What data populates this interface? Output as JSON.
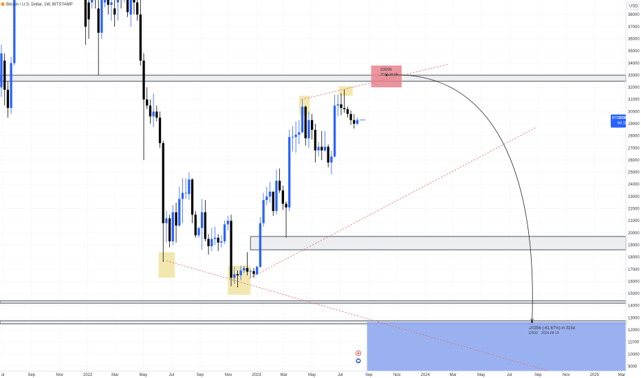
{
  "header": {
    "title": "Bitcoin / U.S. Dollar, 1W, BITSTAMP"
  },
  "price_axis": {
    "currency_label": "USD",
    "ticks": [
      "38000",
      "37000",
      "36000",
      "35000",
      "34000",
      "33000",
      "32000",
      "31000",
      "30000",
      "29000",
      "28000",
      "27000",
      "26000",
      "25000",
      "24000",
      "23000",
      "22000",
      "21000",
      "20000",
      "19000",
      "18000",
      "17000",
      "16000",
      "15000",
      "14000",
      "13000",
      "12000",
      "11000",
      "10000",
      "9000"
    ]
  },
  "time_axis": {
    "ticks": [
      {
        "label": "ul",
        "date": "2021-07-01"
      },
      {
        "label": "Sep",
        "date": "2021-09-01"
      },
      {
        "label": "Nov",
        "date": "2021-11-01"
      },
      {
        "label": "2022",
        "date": "2022-01-01"
      },
      {
        "label": "Mar",
        "date": "2022-03-01"
      },
      {
        "label": "May",
        "date": "2022-05-01"
      },
      {
        "label": "Jul",
        "date": "2022-07-01"
      },
      {
        "label": "Sep",
        "date": "2022-09-01"
      },
      {
        "label": "Nov",
        "date": "2022-11-01"
      },
      {
        "label": "2023",
        "date": "2023-01-01"
      },
      {
        "label": "Mar",
        "date": "2023-03-01"
      },
      {
        "label": "May",
        "date": "2023-05-01"
      },
      {
        "label": "Jul",
        "date": "2023-07-01"
      },
      {
        "label": "Sep",
        "date": "2023-09-01"
      },
      {
        "label": "Nov",
        "date": "2023-11-01"
      },
      {
        "label": "2024",
        "date": "2024-01-01"
      },
      {
        "label": "Mar",
        "date": "2024-03-01"
      },
      {
        "label": "May",
        "date": "2024-05-01"
      },
      {
        "label": "Jul",
        "date": "2024-07-01"
      },
      {
        "label": "Sep",
        "date": "2024-09-01"
      },
      {
        "label": "Nov",
        "date": "2024-11-01"
      },
      {
        "label": "2025",
        "date": "2025-01-01"
      },
      {
        "label": "Mar",
        "date": "2025-03-01"
      }
    ]
  },
  "current_price": {
    "symbol": "BTCUSD",
    "price": "29305",
    "countdown": "6d 11h"
  },
  "annotations": {
    "peak_price": "33006",
    "peak_date": "2023-10-09",
    "measure_line1": "-20356 (-61.67%) in 315d",
    "measure_line2": "12650",
    "measure_line3": "2024-08-19"
  },
  "colors": {
    "bull": "#2962ff",
    "bear": "#000000",
    "zone_border": "#7d8088",
    "zone_fill": "#eceef2",
    "pivot_highlight": "#f0e4a1",
    "target_red": "#e8828f",
    "target_blue": "#8fa9ef",
    "trendline": "#e07070",
    "badge": "#2962ff"
  },
  "chart_data": {
    "type": "candlestick",
    "timeframe": "1W",
    "x_range": [
      "2021-06-25",
      "2025-03-10"
    ],
    "y_range": [
      8600,
      39200
    ],
    "candles": [
      {
        "date": "2021-06-28",
        "o": 32000,
        "h": 35500,
        "l": 31200,
        "c": 34800
      },
      {
        "date": "2021-07-05",
        "o": 34200,
        "h": 34800,
        "l": 30500,
        "c": 31800
      },
      {
        "date": "2021-07-12",
        "o": 31800,
        "h": 32500,
        "l": 29500,
        "c": 30300
      },
      {
        "date": "2021-07-19",
        "o": 30300,
        "h": 34500,
        "l": 29800,
        "c": 34000
      },
      {
        "date": "2021-07-26",
        "o": 34000,
        "h": 40000,
        "l": 33800,
        "c": 39500
      },
      {
        "date": "2021-12-27",
        "o": 41000,
        "h": 41500,
        "l": 35500,
        "c": 37000
      },
      {
        "date": "2022-01-03",
        "o": 39000,
        "h": 40000,
        "l": 36000,
        "c": 37600
      },
      {
        "date": "2022-01-10",
        "o": 39000,
        "h": 41000,
        "l": 38500,
        "c": 40000
      },
      {
        "date": "2022-01-17",
        "o": 40000,
        "h": 41500,
        "l": 38500,
        "c": 39500
      },
      {
        "date": "2022-01-24",
        "o": 38500,
        "h": 41000,
        "l": 33000,
        "c": 36500
      },
      {
        "date": "2022-01-31",
        "o": 36500,
        "h": 40000,
        "l": 36000,
        "c": 39500
      },
      {
        "date": "2022-02-07",
        "o": 39000,
        "h": 42500,
        "l": 38600,
        "c": 40500
      },
      {
        "date": "2022-02-14",
        "o": 40500,
        "h": 41000,
        "l": 38000,
        "c": 38800
      },
      {
        "date": "2022-02-21",
        "o": 38800,
        "h": 40000,
        "l": 37500,
        "c": 39000
      },
      {
        "date": "2022-02-28",
        "o": 38500,
        "h": 40000,
        "l": 37000,
        "c": 38000
      },
      {
        "date": "2022-03-07",
        "o": 39000,
        "h": 41000,
        "l": 37500,
        "c": 40000
      },
      {
        "date": "2022-03-14",
        "o": 40500,
        "h": 41000,
        "l": 38500,
        "c": 39500
      },
      {
        "date": "2022-03-21",
        "o": 40000,
        "h": 42000,
        "l": 39000,
        "c": 41500
      },
      {
        "date": "2022-03-28",
        "o": 41500,
        "h": 42000,
        "l": 37800,
        "c": 38200
      },
      {
        "date": "2022-04-04",
        "o": 38000,
        "h": 40000,
        "l": 37000,
        "c": 39800
      },
      {
        "date": "2022-04-11",
        "o": 39800,
        "h": 41000,
        "l": 38000,
        "c": 39000
      },
      {
        "date": "2022-04-18",
        "o": 39000,
        "h": 40500,
        "l": 37500,
        "c": 38000
      },
      {
        "date": "2022-04-25",
        "o": 38000,
        "h": 39500,
        "l": 33800,
        "c": 34200
      },
      {
        "date": "2022-05-02",
        "o": 34200,
        "h": 34800,
        "l": 26000,
        "c": 31000
      },
      {
        "date": "2022-05-09",
        "o": 31000,
        "h": 32000,
        "l": 30200,
        "c": 30500
      },
      {
        "date": "2022-05-16",
        "o": 30500,
        "h": 31000,
        "l": 29000,
        "c": 29600
      },
      {
        "date": "2022-05-23",
        "o": 29600,
        "h": 31500,
        "l": 28700,
        "c": 30000
      },
      {
        "date": "2022-05-30",
        "o": 30000,
        "h": 30500,
        "l": 29200,
        "c": 29500
      },
      {
        "date": "2022-06-06",
        "o": 29500,
        "h": 30000,
        "l": 27000,
        "c": 27400
      },
      {
        "date": "2022-06-13",
        "o": 27400,
        "h": 27600,
        "l": 17600,
        "c": 20800
      },
      {
        "date": "2022-06-20",
        "o": 20800,
        "h": 21800,
        "l": 19200,
        "c": 21200
      },
      {
        "date": "2022-06-27",
        "o": 21200,
        "h": 21500,
        "l": 18800,
        "c": 19300
      },
      {
        "date": "2022-07-04",
        "o": 19300,
        "h": 22300,
        "l": 19000,
        "c": 21700
      },
      {
        "date": "2022-07-11",
        "o": 21700,
        "h": 22500,
        "l": 19200,
        "c": 20600
      },
      {
        "date": "2022-07-18",
        "o": 20600,
        "h": 23800,
        "l": 20500,
        "c": 22800
      },
      {
        "date": "2022-07-25",
        "o": 22800,
        "h": 24500,
        "l": 20800,
        "c": 23300
      },
      {
        "date": "2022-08-01",
        "o": 23300,
        "h": 24500,
        "l": 22800,
        "c": 23300
      },
      {
        "date": "2022-08-08",
        "o": 23200,
        "h": 25000,
        "l": 22700,
        "c": 24400
      },
      {
        "date": "2022-08-15",
        "o": 24400,
        "h": 24500,
        "l": 20800,
        "c": 21500
      },
      {
        "date": "2022-08-22",
        "o": 21500,
        "h": 21800,
        "l": 19600,
        "c": 19800
      },
      {
        "date": "2022-08-29",
        "o": 19800,
        "h": 20500,
        "l": 19600,
        "c": 20400
      },
      {
        "date": "2022-09-05",
        "o": 20400,
        "h": 22800,
        "l": 18600,
        "c": 21700
      },
      {
        "date": "2022-09-12",
        "o": 21700,
        "h": 22700,
        "l": 19300,
        "c": 19500
      },
      {
        "date": "2022-09-19",
        "o": 19500,
        "h": 19900,
        "l": 18200,
        "c": 18900
      },
      {
        "date": "2022-09-26",
        "o": 18900,
        "h": 20400,
        "l": 18500,
        "c": 19500
      },
      {
        "date": "2022-10-03",
        "o": 19500,
        "h": 20500,
        "l": 19000,
        "c": 19600
      },
      {
        "date": "2022-10-10",
        "o": 19600,
        "h": 19900,
        "l": 18500,
        "c": 19200
      },
      {
        "date": "2022-10-17",
        "o": 19200,
        "h": 19800,
        "l": 18800,
        "c": 19300
      },
      {
        "date": "2022-10-24",
        "o": 19300,
        "h": 21000,
        "l": 19100,
        "c": 20700
      },
      {
        "date": "2022-10-31",
        "o": 20700,
        "h": 21400,
        "l": 20200,
        "c": 21000
      },
      {
        "date": "2022-11-07",
        "o": 21000,
        "h": 21500,
        "l": 15600,
        "c": 16300
      },
      {
        "date": "2022-11-14",
        "o": 16300,
        "h": 17200,
        "l": 15800,
        "c": 16600
      },
      {
        "date": "2022-11-21",
        "o": 16600,
        "h": 16900,
        "l": 15500,
        "c": 16500
      },
      {
        "date": "2022-11-28",
        "o": 16500,
        "h": 17300,
        "l": 16100,
        "c": 16900
      },
      {
        "date": "2022-12-05",
        "o": 16900,
        "h": 17300,
        "l": 16700,
        "c": 17100
      },
      {
        "date": "2022-12-12",
        "o": 17100,
        "h": 18400,
        "l": 16500,
        "c": 16800
      },
      {
        "date": "2022-12-19",
        "o": 16800,
        "h": 17000,
        "l": 16300,
        "c": 16850
      },
      {
        "date": "2022-12-26",
        "o": 16850,
        "h": 17100,
        "l": 16300,
        "c": 16600
      },
      {
        "date": "2023-01-02",
        "o": 16600,
        "h": 17300,
        "l": 16500,
        "c": 17200
      },
      {
        "date": "2023-01-09",
        "o": 17200,
        "h": 21300,
        "l": 17100,
        "c": 20800
      },
      {
        "date": "2023-01-16",
        "o": 20800,
        "h": 23300,
        "l": 20500,
        "c": 22700
      },
      {
        "date": "2023-01-23",
        "o": 22700,
        "h": 23800,
        "l": 22300,
        "c": 23000
      },
      {
        "date": "2023-01-30",
        "o": 23000,
        "h": 24200,
        "l": 22500,
        "c": 23400
      },
      {
        "date": "2023-02-06",
        "o": 23400,
        "h": 23400,
        "l": 21400,
        "c": 21800
      },
      {
        "date": "2023-02-13",
        "o": 21800,
        "h": 25200,
        "l": 21500,
        "c": 24300
      },
      {
        "date": "2023-02-20",
        "o": 24300,
        "h": 25300,
        "l": 23300,
        "c": 23500
      },
      {
        "date": "2023-02-27",
        "o": 23500,
        "h": 23900,
        "l": 21900,
        "c": 22400
      },
      {
        "date": "2023-03-06",
        "o": 22400,
        "h": 22600,
        "l": 19600,
        "c": 22100
      },
      {
        "date": "2023-03-13",
        "o": 22100,
        "h": 28500,
        "l": 21800,
        "c": 27900
      },
      {
        "date": "2023-03-20",
        "o": 27900,
        "h": 28800,
        "l": 26700,
        "c": 27900
      },
      {
        "date": "2023-03-27",
        "o": 27900,
        "h": 29200,
        "l": 26600,
        "c": 28100
      },
      {
        "date": "2023-04-03",
        "o": 28100,
        "h": 29300,
        "l": 27300,
        "c": 28300
      },
      {
        "date": "2023-04-10",
        "o": 28300,
        "h": 31000,
        "l": 28200,
        "c": 30400
      },
      {
        "date": "2023-04-17",
        "o": 30400,
        "h": 30500,
        "l": 27200,
        "c": 27800
      },
      {
        "date": "2023-04-24",
        "o": 27800,
        "h": 30000,
        "l": 27000,
        "c": 29300
      },
      {
        "date": "2023-05-01",
        "o": 29300,
        "h": 29800,
        "l": 27700,
        "c": 28500
      },
      {
        "date": "2023-05-08",
        "o": 28500,
        "h": 29000,
        "l": 25800,
        "c": 26800
      },
      {
        "date": "2023-05-15",
        "o": 26800,
        "h": 27500,
        "l": 26300,
        "c": 27100
      },
      {
        "date": "2023-05-22",
        "o": 27100,
        "h": 28400,
        "l": 26000,
        "c": 26800
      },
      {
        "date": "2023-05-29",
        "o": 26800,
        "h": 28400,
        "l": 26700,
        "c": 27100
      },
      {
        "date": "2023-06-05",
        "o": 27100,
        "h": 27300,
        "l": 25400,
        "c": 25800
      },
      {
        "date": "2023-06-12",
        "o": 25800,
        "h": 26800,
        "l": 24800,
        "c": 26300
      },
      {
        "date": "2023-06-19",
        "o": 26300,
        "h": 31400,
        "l": 26200,
        "c": 30500
      },
      {
        "date": "2023-06-26",
        "o": 30500,
        "h": 31400,
        "l": 29600,
        "c": 30600
      },
      {
        "date": "2023-07-03",
        "o": 30600,
        "h": 31500,
        "l": 29700,
        "c": 30300
      },
      {
        "date": "2023-07-10",
        "o": 30300,
        "h": 31800,
        "l": 29900,
        "c": 30200
      },
      {
        "date": "2023-07-17",
        "o": 30200,
        "h": 30400,
        "l": 29500,
        "c": 29800
      },
      {
        "date": "2023-07-24",
        "o": 29800,
        "h": 30100,
        "l": 28900,
        "c": 29300
      },
      {
        "date": "2023-07-31",
        "o": 29300,
        "h": 29800,
        "l": 28600,
        "c": 29000
      },
      {
        "date": "2023-08-07",
        "o": 29000,
        "h": 29500,
        "l": 28900,
        "c": 29305
      }
    ],
    "horizontal_zones": [
      {
        "from_date": "2021-06-25",
        "to_date": "2025-03-10",
        "low": 32500,
        "high": 33000
      },
      {
        "from_date": "2022-12-19",
        "to_date": "2025-03-10",
        "low": 18600,
        "high": 19700
      },
      {
        "from_date": "2021-06-25",
        "to_date": "2025-03-10",
        "low": 14200,
        "high": 14400
      },
      {
        "from_date": "2021-06-25",
        "to_date": "2025-03-10",
        "low": 12500,
        "high": 12750
      }
    ],
    "highlight_boxes": [
      {
        "from_date": "2022-06-03",
        "to_date": "2022-07-08",
        "low": 16300,
        "high": 18400
      },
      {
        "from_date": "2022-10-31",
        "to_date": "2022-12-19",
        "low": 14900,
        "high": 17300
      },
      {
        "from_date": "2023-04-03",
        "to_date": "2023-04-26",
        "low": 29700,
        "high": 31300
      },
      {
        "from_date": "2023-06-28",
        "to_date": "2023-07-28",
        "low": 31300,
        "high": 32100
      }
    ],
    "target_boxes": [
      {
        "kind": "red",
        "from_date": "2023-09-06",
        "to_date": "2023-11-11",
        "low": 32000,
        "high": 33800
      },
      {
        "kind": "blue",
        "from_date": "2023-08-28",
        "to_date": "2025-03-10",
        "low": 8600,
        "high": 12650
      }
    ],
    "trendlines": [
      {
        "from": [
          "2022-06-20",
          17700
        ],
        "to": [
          "2024-09-25",
          8600
        ]
      },
      {
        "from": [
          "2022-12-16",
          16250
        ],
        "to": [
          "2024-08-28",
          28700
        ]
      },
      {
        "from": [
          "2023-04-08",
          31000
        ],
        "to": [
          "2024-02-20",
          33900
        ]
      }
    ],
    "projection_arc": {
      "from": [
        "2023-10-09",
        33006
      ],
      "to": [
        "2024-08-19",
        12650
      ]
    }
  }
}
